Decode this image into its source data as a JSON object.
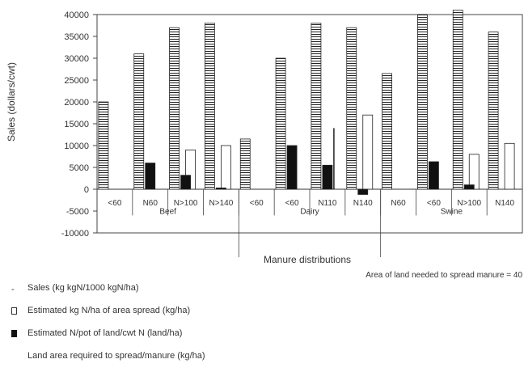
{
  "chart_data": {
    "type": "bar",
    "ylabel": "Sales (dollars/cwt)",
    "xlabel": "Manure distributions",
    "ytick_labels": [
      "40000",
      "35000",
      "30000",
      "25000",
      "20000",
      "15000",
      "10000",
      "5000",
      "0",
      "-5000",
      "-10000"
    ],
    "ylim": [
      -10000,
      40000
    ],
    "categories": [
      "<60",
      "N60",
      "N>100",
      "N>140",
      "<60",
      "<60",
      "N110",
      "N140",
      "N60",
      "<60",
      "N>100",
      "N140"
    ],
    "groups": [
      {
        "label": "Beef",
        "start": 0,
        "end": 3
      },
      {
        "label": "Dairy",
        "start": 4,
        "end": 7
      },
      {
        "label": "Swine",
        "start": 8,
        "end": 11
      }
    ],
    "series": [
      {
        "name": "Sales (kg kgN/1000 kgN/ha)",
        "pattern": "striped",
        "values": [
          20000,
          31000,
          37000,
          38000,
          11500,
          30000,
          38000,
          37000,
          26500,
          40000,
          41000,
          36000
        ]
      },
      {
        "name": "Estimated kg N/ha of area spread (kg/ha)",
        "pattern": "white",
        "values": [
          0,
          0,
          9000,
          10000,
          0,
          0,
          0,
          17000,
          0,
          0,
          8000,
          10500
        ]
      },
      {
        "name": "Estimated N/pot of land/cwt N (land/ha)",
        "pattern": "black",
        "values": [
          0,
          6000,
          3200,
          300,
          0,
          10000,
          5500,
          -1200,
          0,
          6300,
          1000,
          0
        ]
      }
    ],
    "series_lines": [
      {
        "name": "Land area required to spread/manure (kg/ha)",
        "values": [
          null,
          null,
          null,
          null,
          null,
          null,
          14000,
          null,
          null,
          null,
          null,
          null
        ]
      }
    ],
    "annotation": "Area of land needed to spread manure = 40",
    "grid": false,
    "legend": "bottom-left"
  },
  "legend_items": [
    {
      "label": "Sales (kg kgN/1000 kgN/ha)",
      "swatch": "dash"
    },
    {
      "label": "Estimated kg N/ha of area spread (kg/ha)",
      "swatch": "white"
    },
    {
      "label": "Estimated N/pot of land/cwt N (land/ha)",
      "swatch": "black"
    },
    {
      "label": "Land area required to spread/manure (kg/ha)",
      "swatch": "none"
    }
  ]
}
